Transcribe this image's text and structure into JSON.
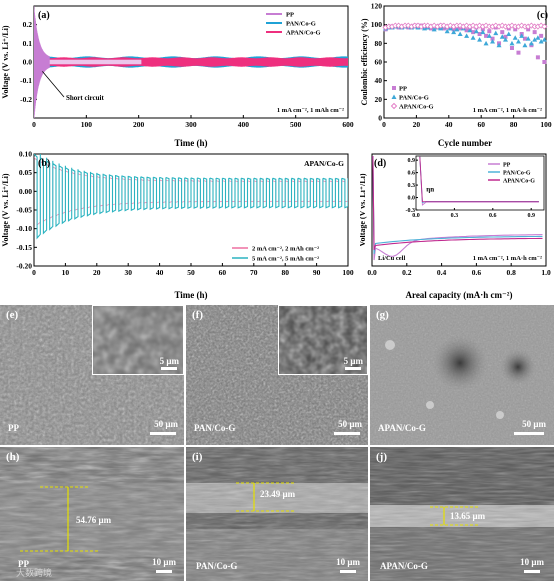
{
  "chart_data": [
    {
      "id": "a",
      "type": "line",
      "panel_label": "(a)",
      "xlabel": "Time (h)",
      "ylabel": "Voltage (V vs. Li⁺/Li)",
      "xlim": [
        0,
        600
      ],
      "ylim": [
        -0.3,
        0.3
      ],
      "xticks": [
        0,
        100,
        200,
        300,
        400,
        500,
        600
      ],
      "yticks": [
        -0.2,
        -0.1,
        0.0,
        0.1,
        0.2
      ],
      "series": [
        {
          "name": "PP",
          "color": "#c77dd3",
          "x_end": 205,
          "amplitude_start": 0.28,
          "amplitude_end": 0.012
        },
        {
          "name": "PAN/Co-G",
          "color": "#1fa2d6",
          "x_end": 600,
          "amplitude": 0.03
        },
        {
          "name": "APAN/Co-G",
          "color": "#ee2f7e",
          "x_end": 600,
          "amplitude": 0.025
        }
      ],
      "annotation": "Short circuit",
      "condition": "1 mA cm⁻², 1 mAh cm⁻²"
    },
    {
      "id": "b",
      "type": "line",
      "panel_label": "(b)",
      "title_inside": "APAN/Co-G",
      "xlabel": "Time (h)",
      "ylabel": "Voltage (V vs. Li⁺/Li)",
      "xlim": [
        0,
        100
      ],
      "ylim": [
        -0.2,
        0.1
      ],
      "xticks": [
        0,
        10,
        20,
        30,
        40,
        50,
        60,
        70,
        80,
        90,
        100
      ],
      "yticks": [
        -0.2,
        -0.15,
        -0.1,
        -0.05,
        0.0,
        0.05,
        0.1
      ],
      "series": [
        {
          "name": "2 mA cm⁻², 2 mAh cm⁻²",
          "color": "#ee6fa0",
          "amplitude_start": 0.09,
          "amplitude_end": 0.028
        },
        {
          "name": "5 mA cm⁻², 5 mAh cm⁻²",
          "color": "#2bb3c0",
          "amplitude_start": 0.1,
          "amplitude_end": 0.035
        }
      ]
    },
    {
      "id": "c",
      "type": "scatter",
      "panel_label": "(c)",
      "xlabel": "Cycle number",
      "ylabel": "Coulombic efficiency (%)",
      "xlim": [
        0,
        100
      ],
      "ylim": [
        0,
        120
      ],
      "xticks": [
        0,
        20,
        40,
        60,
        80,
        100
      ],
      "yticks": [
        0,
        20,
        40,
        60,
        80,
        100,
        120
      ],
      "series": [
        {
          "name": "PP",
          "color": "#c77dd3",
          "marker": "square",
          "x": [
            1,
            3,
            5,
            7,
            9,
            11,
            13,
            15,
            17,
            19,
            21,
            23,
            25,
            27,
            29,
            31,
            33,
            35,
            37,
            39,
            41,
            43,
            45,
            47,
            49,
            51,
            53,
            55,
            57,
            59,
            61,
            63,
            65,
            67,
            69,
            71,
            73,
            75,
            77,
            79,
            81,
            83,
            85,
            87,
            89,
            91,
            93,
            95,
            97,
            99
          ],
          "y": [
            95,
            97,
            98,
            98,
            97,
            98,
            98,
            97,
            98,
            99,
            98,
            99,
            97,
            98,
            96,
            98,
            97,
            99,
            96,
            97,
            98,
            95,
            97,
            96,
            98,
            94,
            96,
            92,
            97,
            90,
            95,
            88,
            93,
            85,
            97,
            80,
            92,
            87,
            96,
            75,
            95,
            70,
            90,
            85,
            95,
            78,
            92,
            65,
            88,
            60
          ]
        },
        {
          "name": "PAN/Co-G",
          "color": "#3ea8d8",
          "marker": "triangle",
          "x": [
            1,
            3,
            5,
            7,
            9,
            11,
            13,
            15,
            17,
            19,
            21,
            23,
            25,
            27,
            29,
            31,
            33,
            35,
            37,
            39,
            41,
            43,
            45,
            47,
            49,
            51,
            53,
            55,
            57,
            59,
            61,
            63,
            65,
            67,
            69,
            71,
            73,
            75,
            77,
            79,
            81,
            83,
            85,
            87,
            89,
            91,
            93,
            95,
            97,
            99
          ],
          "y": [
            96,
            97,
            97,
            98,
            98,
            97,
            98,
            98,
            97,
            98,
            97,
            98,
            96,
            97,
            98,
            95,
            97,
            96,
            98,
            93,
            96,
            92,
            95,
            90,
            96,
            88,
            94,
            86,
            93,
            84,
            92,
            80,
            88,
            82,
            91,
            78,
            87,
            84,
            90,
            80,
            86,
            82,
            88,
            78,
            85,
            80,
            84,
            86,
            82,
            84
          ]
        },
        {
          "name": "APAN/Co-G",
          "color": "#e37fc6",
          "marker": "diamond-open",
          "x": [
            1,
            3,
            5,
            7,
            9,
            11,
            13,
            15,
            17,
            19,
            21,
            23,
            25,
            27,
            29,
            31,
            33,
            35,
            37,
            39,
            41,
            43,
            45,
            47,
            49,
            51,
            53,
            55,
            57,
            59,
            61,
            63,
            65,
            67,
            69,
            71,
            73,
            75,
            77,
            79,
            81,
            83,
            85,
            87,
            89,
            91,
            93,
            95,
            97,
            99
          ],
          "y": [
            97,
            98,
            98,
            99,
            99,
            98,
            99,
            99,
            98,
            99,
            99,
            98,
            99,
            99,
            98,
            99,
            98,
            99,
            99,
            98,
            99,
            98,
            99,
            99,
            98,
            99,
            98,
            99,
            98,
            99,
            98,
            99,
            98,
            98,
            99,
            98,
            99,
            98,
            98,
            99,
            98,
            98,
            99,
            98,
            98,
            99,
            98,
            98,
            99,
            98
          ]
        }
      ],
      "condition": "1 mA cm⁻², 1 mA·h cm⁻²"
    },
    {
      "id": "d",
      "type": "line",
      "panel_label": "(d)",
      "xlabel": "Areal capacity (mA·h cm⁻²)",
      "ylabel": "Voltage (V vs. Li⁺/Li)",
      "xlim": [
        0,
        1.0
      ],
      "xticks": [
        0.0,
        0.2,
        0.4,
        0.6,
        0.8,
        1.0
      ],
      "cell_label": "Li/Cu cell",
      "condition": "1 mA cm⁻², 1 mA·h cm⁻²",
      "series": [
        {
          "name": "PP",
          "color": "#c77dd3"
        },
        {
          "name": "PAN/Co-G",
          "color": "#4fb2d8"
        },
        {
          "name": "APAN/Co-G",
          "color": "#c12a8f"
        }
      ],
      "inset": {
        "xticks": [
          0.0,
          0.3,
          0.6,
          0.9
        ],
        "yticks": [
          -0.3,
          0.0,
          0.3,
          0.6,
          0.9
        ],
        "label": "ηn"
      }
    }
  ],
  "sem_panels": {
    "e": {
      "label": "(e)",
      "sample": "PP",
      "scale": "50 μm",
      "inset_scale": "5 μm"
    },
    "f": {
      "label": "(f)",
      "sample": "PAN/Co-G",
      "scale": "50 μm",
      "inset_scale": "5 μm"
    },
    "g": {
      "label": "(g)",
      "sample": "APAN/Co-G",
      "scale": "50 μm"
    },
    "h": {
      "label": "(h)",
      "sample": "PP",
      "scale": "10 μm",
      "thickness": "54.76 μm"
    },
    "i": {
      "label": "(i)",
      "sample": "PAN/Co-G",
      "scale": "10 μm",
      "thickness": "23.49 μm"
    },
    "j": {
      "label": "(j)",
      "sample": "APAN/Co-G",
      "scale": "10 μm",
      "thickness": "13.65 μm"
    }
  },
  "watermark": "大数跨境"
}
